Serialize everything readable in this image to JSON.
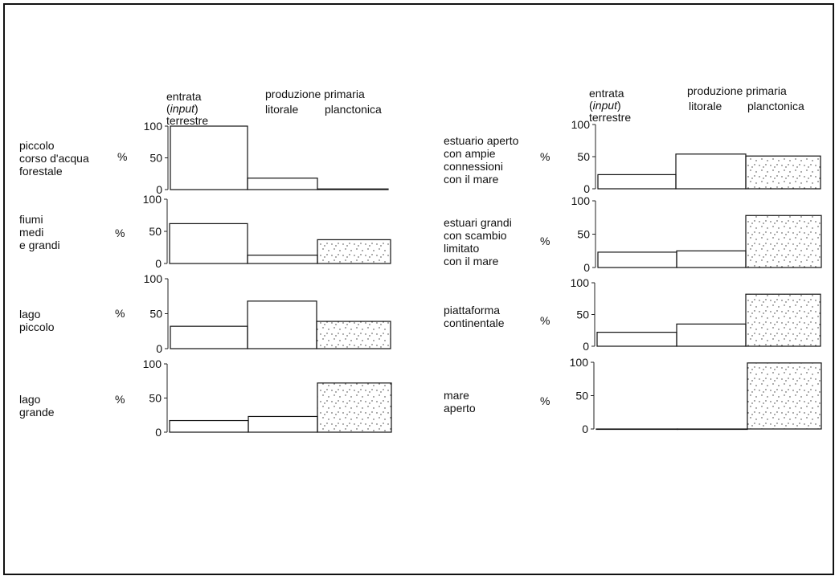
{
  "headers": {
    "left": {
      "terrestre_l1": "entrata",
      "terrestre_l2": "input",
      "terrestre_l3": "terrestre",
      "primaria": "produzione primaria",
      "litorale": "litorale",
      "planctonica": "planctonica"
    },
    "right": {
      "terrestre_l1": "entrata",
      "terrestre_l2": "input",
      "terrestre_l3": "terrestre",
      "primaria": "produzione primaria",
      "litorale": "litorale",
      "planctonica": "planctonica"
    }
  },
  "chart_data": [
    {
      "type": "bar",
      "label": "piccolo\ncorso d'acqua\nforestale",
      "unit": "%",
      "categories": [
        "terrestre",
        "litorale",
        "planctonica"
      ],
      "values": [
        100,
        18,
        1
      ],
      "ylim": [
        0,
        100
      ],
      "yticks": [
        "0",
        "50",
        "100"
      ],
      "fill": [
        "none",
        "none",
        "none"
      ]
    },
    {
      "type": "bar",
      "label": "fiumi\nmedi\ne grandi",
      "unit": "%",
      "categories": [
        "terrestre",
        "litorale",
        "planctonica"
      ],
      "values": [
        62,
        13,
        37
      ],
      "ylim": [
        0,
        100
      ],
      "yticks": [
        "0",
        "50",
        "100"
      ],
      "fill": [
        "none",
        "none",
        "dotted"
      ]
    },
    {
      "type": "bar",
      "label": "lago\npiccolo",
      "unit": "%",
      "categories": [
        "terrestre",
        "litorale",
        "planctonica"
      ],
      "values": [
        32,
        68,
        39
      ],
      "ylim": [
        0,
        100
      ],
      "yticks": [
        "0",
        "50",
        "100"
      ],
      "fill": [
        "none",
        "none",
        "dotted"
      ]
    },
    {
      "type": "bar",
      "label": "lago\ngrande",
      "unit": "%",
      "categories": [
        "terrestre",
        "litorale",
        "planctonica"
      ],
      "values": [
        17,
        23,
        72
      ],
      "ylim": [
        0,
        100
      ],
      "yticks": [
        "0",
        "50",
        "100"
      ],
      "fill": [
        "none",
        "none",
        "dotted"
      ]
    },
    {
      "type": "bar",
      "label": "estuario aperto\ncon ampie\nconnessioni\ncon il mare",
      "unit": "%",
      "categories": [
        "terrestre",
        "litorale",
        "planctonica"
      ],
      "values": [
        22,
        54,
        51
      ],
      "ylim": [
        0,
        100
      ],
      "yticks": [
        "0",
        "50",
        "100"
      ],
      "fill": [
        "none",
        "none",
        "dotted"
      ]
    },
    {
      "type": "bar",
      "label": "estuari grandi\ncon scambio\nlimitato\ncon il mare",
      "unit": "%",
      "categories": [
        "terrestre",
        "litorale",
        "planctonica"
      ],
      "values": [
        23,
        25,
        78
      ],
      "ylim": [
        0,
        100
      ],
      "yticks": [
        "0",
        "50",
        "100"
      ],
      "fill": [
        "none",
        "none",
        "dotted"
      ]
    },
    {
      "type": "bar",
      "label": "piattaforma\ncontinentale",
      "unit": "%",
      "categories": [
        "terrestre",
        "litorale",
        "planctonica"
      ],
      "values": [
        22,
        35,
        82
      ],
      "ylim": [
        0,
        100
      ],
      "yticks": [
        "0",
        "50",
        "100"
      ],
      "fill": [
        "none",
        "none",
        "dotted"
      ]
    },
    {
      "type": "bar",
      "label": "mare\naperto",
      "unit": "%",
      "categories": [
        "terrestre",
        "litorale",
        "planctonica"
      ],
      "values": [
        0,
        0,
        99
      ],
      "ylim": [
        0,
        100
      ],
      "yticks": [
        "0",
        "50",
        "100"
      ],
      "fill": [
        "none",
        "none",
        "dotted"
      ]
    }
  ]
}
